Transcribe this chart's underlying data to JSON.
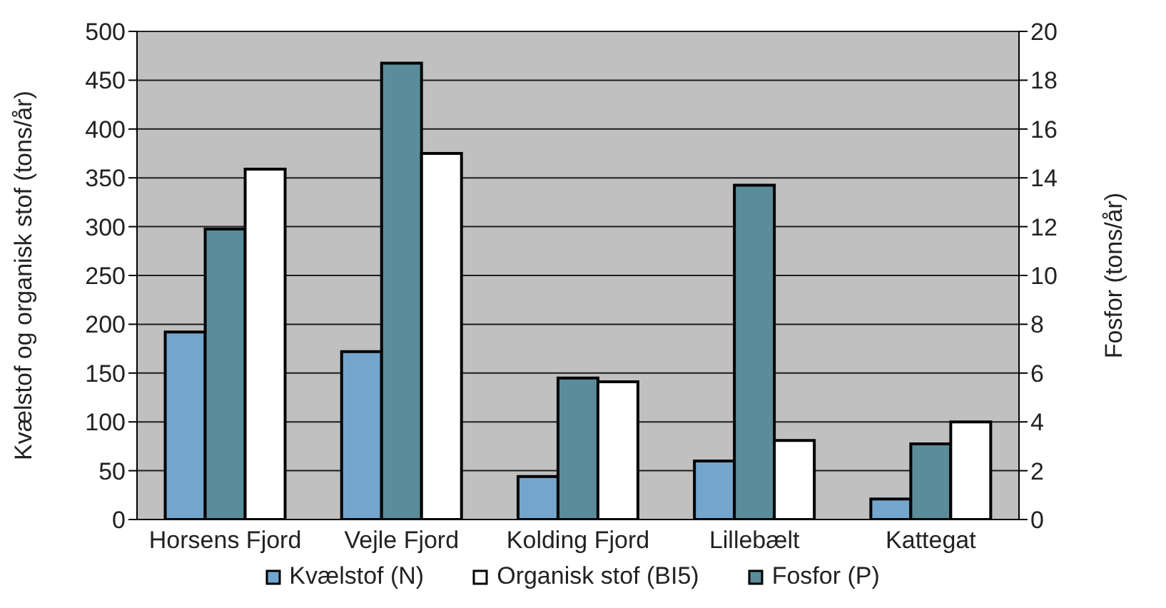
{
  "chart_data": {
    "type": "bar",
    "ylabel": "Kvælstof og organisk stof (tons/år)",
    "y2label": "Fosfor (tons/år)",
    "categories": [
      "Horsens Fjord",
      "Vejle Fjord",
      "Kolding Fjord",
      "Lillebælt",
      "Kattegat"
    ],
    "series": [
      {
        "name": "Kvælstof (N)",
        "color": "#74a5cc",
        "values": [
          192,
          172,
          44,
          60,
          21
        ]
      },
      {
        "name": "Fosfor (P)",
        "color": "#5b8c99",
        "axis": "y2",
        "values": [
          11.9,
          18.7,
          5.8,
          13.7,
          3.1
        ]
      },
      {
        "name": "Organisk stof (BI5)",
        "color": "#ffffff",
        "values": [
          359,
          375,
          141,
          81,
          100
        ]
      }
    ],
    "ylim": [
      0,
      500
    ],
    "yticks": [
      0,
      50,
      100,
      150,
      200,
      250,
      300,
      350,
      400,
      450,
      500
    ],
    "y2lim": [
      0,
      20
    ],
    "y2ticks": [
      0,
      2,
      4,
      6,
      8,
      10,
      12,
      14,
      16,
      18,
      20
    ],
    "grid": "y",
    "legend": "bottom"
  }
}
